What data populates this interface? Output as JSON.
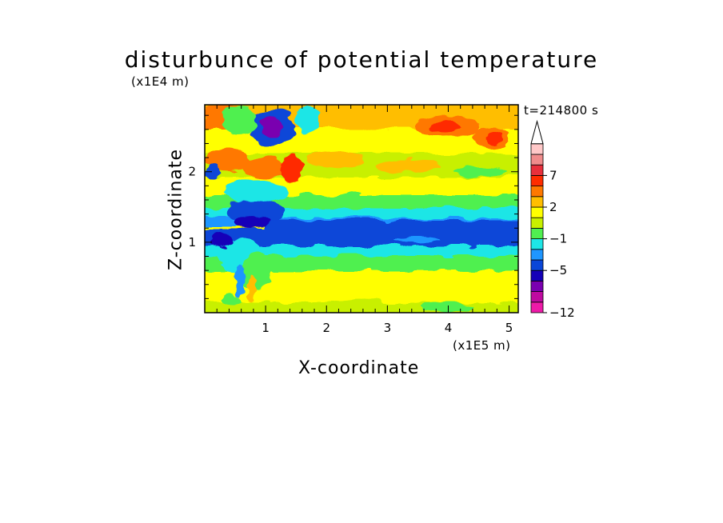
{
  "chart_data": {
    "type": "heatmap",
    "title": "disturbunce of potential temperature",
    "xlabel": "X-coordinate",
    "ylabel": "Z-coordinate",
    "x_unit": "(x1E5 m)",
    "y_unit": "(x1E4 m)",
    "timestamp": "t=214800 s",
    "xlim": [
      0,
      5.15
    ],
    "ylim": [
      0,
      2.95
    ],
    "x_ticks": [
      {
        "value": 1,
        "label": "1"
      },
      {
        "value": 2,
        "label": "2"
      },
      {
        "value": 3,
        "label": "3"
      },
      {
        "value": 4,
        "label": "4"
      },
      {
        "value": 5,
        "label": "5"
      }
    ],
    "y_ticks": [
      {
        "value": 1,
        "label": "1"
      },
      {
        "value": 2,
        "label": "2"
      }
    ],
    "colorbar": {
      "colors": [
        "#ee1aa8",
        "#bf0aa0",
        "#7a00b0",
        "#1400b8",
        "#0a46d8",
        "#1e96ff",
        "#1ee6e6",
        "#50f050",
        "#c8f000",
        "#ffff00",
        "#ffbe00",
        "#ff7800",
        "#ff2c00",
        "#e8303c",
        "#f08c8c",
        "#ffc8c8"
      ],
      "extend_top": true,
      "labels": [
        {
          "level": 0,
          "text": "-12"
        },
        {
          "level": 4,
          "text": "-5"
        },
        {
          "level": 7,
          "text": "-1"
        },
        {
          "level": 10,
          "text": "2"
        },
        {
          "level": 13,
          "text": "7"
        }
      ]
    }
  }
}
